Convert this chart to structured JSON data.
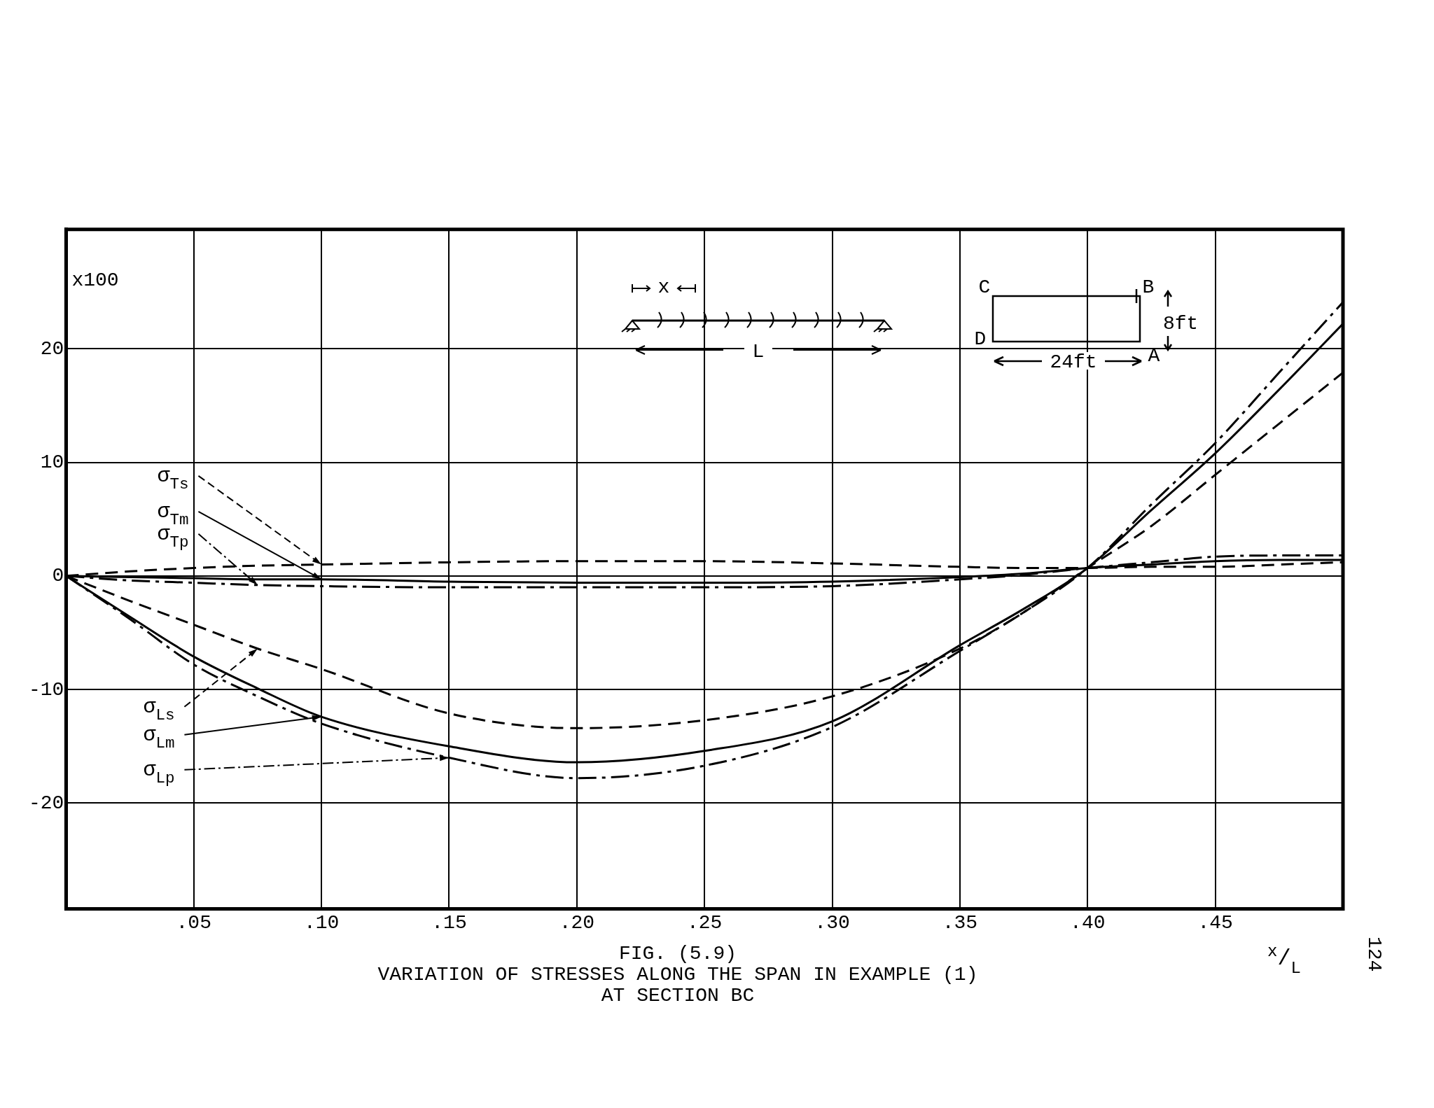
{
  "chart_data": {
    "type": "line",
    "title": "FIG. (5.9)",
    "subtitle": "VARIATION OF STRESSES ALONG THE SPAN IN EXAMPLE (1)\nAT SECTION BC",
    "xlabel": "$^{x}$/$_{L}$",
    "ylabel": "x100",
    "annotations": [
      "x",
      "L",
      "C",
      "B",
      "D",
      "A",
      "8ft",
      "24ft",
      "124"
    ],
    "x": [
      0,
      0.025,
      0.05,
      0.075,
      0.1,
      0.15,
      0.2,
      0.25,
      0.3,
      0.35,
      0.375,
      0.4,
      0.425,
      0.45,
      0.475,
      0.5
    ],
    "series": [
      {
        "name": "σ$_{Ts}$",
        "color": "#000000",
        "line_style": "dashed",
        "values": [
          0,
          0.4,
          0.7,
          0.9,
          1.0,
          1.2,
          1.3,
          1.3,
          1.1,
          0.8,
          0.7,
          0.7,
          0.8,
          0.8,
          1.0,
          1.2
        ]
      },
      {
        "name": "σ$_{Tm}$",
        "color": "#000000",
        "line_style": "solid",
        "values": [
          0,
          -0.1,
          -0.2,
          -0.3,
          -0.3,
          -0.5,
          -0.6,
          -0.6,
          -0.5,
          -0.1,
          0.2,
          0.7,
          1.0,
          1.3,
          1.4,
          1.4
        ]
      },
      {
        "name": "σ$_{Tp}$",
        "color": "#000000",
        "line_style": "dashdot",
        "values": [
          0,
          -0.4,
          -0.6,
          -0.8,
          -0.9,
          -1.0,
          -1.0,
          -1.0,
          -0.9,
          -0.3,
          0.1,
          0.7,
          1.2,
          1.7,
          1.8,
          1.8
        ]
      },
      {
        "name": "σ$_{Ls}$",
        "color": "#000000",
        "line_style": "dashed",
        "values": [
          0,
          -2.2,
          -4.3,
          -6.4,
          -8.2,
          -12.1,
          -13.4,
          -12.7,
          -10.6,
          -6.4,
          -3.2,
          0.7,
          4.4,
          8.9,
          13.4,
          17.9
        ]
      },
      {
        "name": "σ$_{Lm}$",
        "color": "#000000",
        "line_style": "solid",
        "values": [
          0,
          -3.6,
          -7.1,
          -9.9,
          -12.4,
          -15.0,
          -16.4,
          -15.4,
          -12.8,
          -6.1,
          -2.9,
          0.7,
          5.8,
          10.8,
          16.4,
          22.2
        ]
      },
      {
        "name": "σ$_{Lp}$",
        "color": "#000000",
        "line_style": "dashdot",
        "values": [
          0,
          -3.8,
          -7.8,
          -10.6,
          -13.0,
          -16.0,
          -17.8,
          -16.7,
          -13.3,
          -6.6,
          -3.2,
          0.7,
          6.3,
          11.7,
          17.9,
          24.1
        ]
      }
    ],
    "xlim": [
      0,
      0.5
    ],
    "ylim": [
      -29.3,
      30.5
    ],
    "xticks": [
      {
        "value": 0.05,
        "label": ".05"
      },
      {
        "value": 0.1,
        "label": ".10"
      },
      {
        "value": 0.15,
        "label": ".15"
      },
      {
        "value": 0.2,
        "label": ".20"
      },
      {
        "value": 0.25,
        "label": ".25"
      },
      {
        "value": 0.3,
        "label": ".30"
      },
      {
        "value": 0.35,
        "label": ".35"
      },
      {
        "value": 0.4,
        "label": ".40"
      },
      {
        "value": 0.45,
        "label": ".45"
      }
    ],
    "yticks": [
      -20,
      -10,
      0,
      10,
      20
    ],
    "grid": true,
    "legend": false,
    "marker": "none"
  }
}
